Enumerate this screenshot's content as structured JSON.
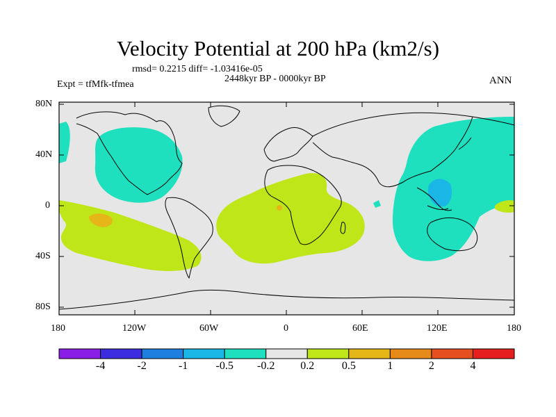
{
  "title": "Velocity Potential at 200 hPa (km2/s)",
  "stats": "rmsd= 0.2215 diff= -1.03416e-05",
  "experiment": "Expt = tfMfk-tfmea",
  "period": "2448kyr BP - 0000kyr BP",
  "season": "ANN",
  "lat_labels": [
    "80N",
    "40N",
    "0",
    "40S",
    "80S"
  ],
  "lon_labels": [
    "180",
    "120W",
    "60W",
    "0",
    "60E",
    "120E",
    "180"
  ],
  "colorbar": {
    "labels": [
      "-4",
      "-2",
      "-1",
      "-0.5",
      "-0.2",
      "0.2",
      "0.5",
      "1",
      "2",
      "4"
    ],
    "colors": [
      "#8a1ee6",
      "#3c2ee0",
      "#1f7fe0",
      "#19b6e6",
      "#1fe0be",
      "#e6e6e6",
      "#bfe619",
      "#e6b619",
      "#e68a19",
      "#e6501e",
      "#e61e1e"
    ]
  },
  "colors": {
    "neutral": "#e6e6e6",
    "positive_weak": "#bfe619",
    "positive_mid": "#e6b619",
    "negative_weak": "#1fe0be",
    "negative_mid": "#19b6e6"
  }
}
